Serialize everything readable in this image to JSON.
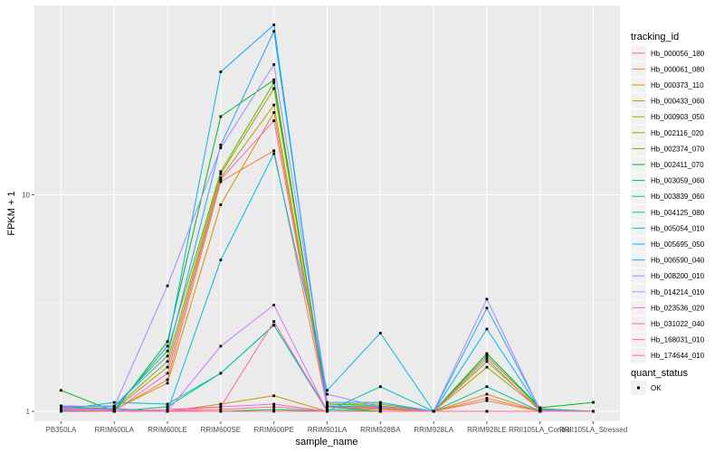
{
  "chart_data": {
    "type": "line",
    "xlabel": "sample_name",
    "ylabel": "FPKM + 1",
    "y_scale": "log10",
    "ylim": [
      0.9,
      75
    ],
    "yticks": [
      1,
      10
    ],
    "ytick_labels": [
      "1",
      "10"
    ],
    "grid": true,
    "legend_position": "right",
    "categories": [
      "PB350LA",
      "RRIM600LA",
      "RRIM600LE",
      "RRIM600SE",
      "RRIM600PE",
      "RRIM901LA",
      "RRIM928BA",
      "RRIM928LA",
      "RRIM928LE",
      "RRII105LA_Control",
      "RRII105LA_Stressed"
    ],
    "legend_title": "tracking_id",
    "series": [
      {
        "name": "Hb_000056_180",
        "color": "#F8766D",
        "values": [
          1.01,
          1.0,
          1.0,
          1.02,
          1.05,
          1.0,
          1.0,
          1.0,
          1.15,
          1.0,
          1.0
        ]
      },
      {
        "name": "Hb_000061_080",
        "color": "#EC8239",
        "values": [
          1.02,
          1.01,
          1.4,
          11.5,
          16.0,
          1.05,
          1.02,
          1.0,
          1.12,
          1.0,
          1.0
        ]
      },
      {
        "name": "Hb_000373_110",
        "color": "#DB8E00",
        "values": [
          1.03,
          1.02,
          1.35,
          9.0,
          24.0,
          1.05,
          1.03,
          1.0,
          1.2,
          1.0,
          1.0
        ]
      },
      {
        "name": "Hb_000433_060",
        "color": "#C79800",
        "values": [
          1.02,
          1.0,
          1.0,
          1.08,
          1.18,
          1.0,
          1.0,
          1.0,
          1.0,
          1.0,
          1.0
        ]
      },
      {
        "name": "Hb_000903_050",
        "color": "#AEA200",
        "values": [
          1.04,
          1.02,
          1.6,
          12.0,
          26.0,
          1.05,
          1.05,
          1.0,
          1.6,
          1.02,
          1.0
        ]
      },
      {
        "name": "Hb_002116_020",
        "color": "#8FAA00",
        "values": [
          1.05,
          1.03,
          1.7,
          12.5,
          31.0,
          1.08,
          1.06,
          1.0,
          1.7,
          1.02,
          1.0
        ]
      },
      {
        "name": "Hb_002374_070",
        "color": "#64B200",
        "values": [
          1.06,
          1.05,
          1.9,
          12.8,
          33.0,
          1.08,
          1.08,
          1.0,
          1.8,
          1.03,
          1.0
        ]
      },
      {
        "name": "Hb_002411_070",
        "color": "#00B81B",
        "values": [
          1.25,
          1.0,
          2.1,
          23.0,
          34.0,
          1.05,
          1.0,
          1.0,
          1.85,
          1.04,
          1.1
        ]
      },
      {
        "name": "Hb_003059_060",
        "color": "#00BD5C",
        "values": [
          1.0,
          1.0,
          1.0,
          1.0,
          1.02,
          1.0,
          1.0,
          1.0,
          1.0,
          1.0,
          1.0
        ]
      },
      {
        "name": "Hb_003839_060",
        "color": "#00C08E",
        "values": [
          1.02,
          1.0,
          1.05,
          1.5,
          2.5,
          1.02,
          1.0,
          1.0,
          1.0,
          1.0,
          1.0
        ]
      },
      {
        "name": "Hb_004125_080",
        "color": "#00C1B2",
        "values": [
          1.02,
          1.1,
          1.08,
          1.5,
          2.5,
          1.0,
          1.3,
          1.0,
          1.3,
          1.0,
          1.0
        ]
      },
      {
        "name": "Hb_005054_010",
        "color": "#00BCD6",
        "values": [
          1.03,
          1.03,
          1.0,
          5.0,
          15.5,
          1.25,
          2.3,
          1.0,
          1.0,
          1.0,
          1.0
        ]
      },
      {
        "name": "Hb_005695_050",
        "color": "#00B3F2",
        "values": [
          1.04,
          1.02,
          2.0,
          37.0,
          61.0,
          1.06,
          1.05,
          1.0,
          2.4,
          1.02,
          1.0
        ]
      },
      {
        "name": "Hb_006590_040",
        "color": "#29A3FF",
        "values": [
          1.05,
          1.06,
          1.8,
          17.0,
          57.0,
          1.1,
          1.1,
          1.0,
          3.0,
          1.02,
          1.0
        ]
      },
      {
        "name": "Hb_008200_010",
        "color": "#9C8DFF",
        "values": [
          1.06,
          1.05,
          3.8,
          16.5,
          40.0,
          1.2,
          1.05,
          1.0,
          3.3,
          1.01,
          1.0
        ]
      },
      {
        "name": "Hb_014214_010",
        "color": "#D277FF",
        "values": [
          1.03,
          1.02,
          1.0,
          2.0,
          3.1,
          1.0,
          1.0,
          1.0,
          1.0,
          1.0,
          1.0
        ]
      },
      {
        "name": "Hb_023536_020",
        "color": "#F166E8",
        "values": [
          1.04,
          1.0,
          1.0,
          1.05,
          1.08,
          1.0,
          1.0,
          1.0,
          1.0,
          1.0,
          1.0
        ]
      },
      {
        "name": "Hb_031022_040",
        "color": "#FF61C7",
        "values": [
          1.02,
          1.0,
          1.5,
          11.8,
          22.0,
          1.05,
          1.04,
          1.0,
          1.75,
          1.0,
          1.0
        ]
      },
      {
        "name": "Hb_168031_010",
        "color": "#FF689E",
        "values": [
          1.01,
          1.0,
          1.02,
          1.05,
          2.6,
          1.0,
          1.0,
          1.0,
          1.0,
          1.0,
          1.0
        ]
      },
      {
        "name": "Hb_174644_010",
        "color": "#FF6C91",
        "values": [
          1.01,
          1.0,
          1.0,
          1.0,
          1.0,
          1.0,
          1.0,
          1.0,
          1.0,
          1.0,
          1.0
        ]
      }
    ],
    "shape_legend": {
      "title": "quant_status",
      "items": [
        "OK"
      ]
    }
  }
}
